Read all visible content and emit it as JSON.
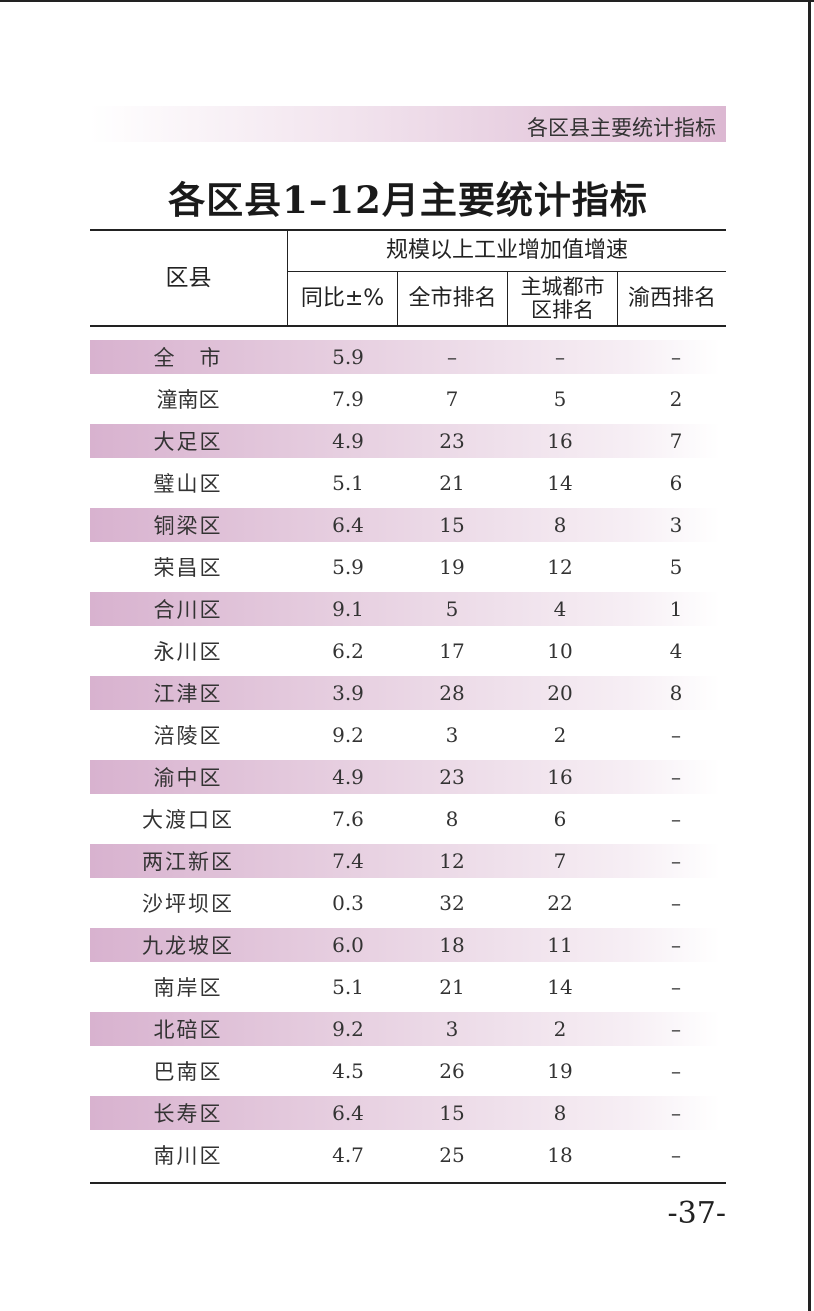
{
  "header_band": "各区县主要统计指标",
  "title": "各区县1–12月主要统计指标",
  "table": {
    "col_district": "区县",
    "group_header": "规模以上工业增加值增速",
    "col_yoy": "同比±%",
    "col_city_rank": "全市排名",
    "col_main_city_rank_line1": "主城都市",
    "col_main_city_rank_line2": "区排名",
    "col_west_rank": "渝西排名",
    "rows": [
      {
        "name": "全　市",
        "yoy": "5.9",
        "city_rank": "–",
        "main_rank": "–",
        "west_rank": "–"
      },
      {
        "name": "潼南区",
        "yoy": "7.9",
        "city_rank": "7",
        "main_rank": "5",
        "west_rank": "2"
      },
      {
        "name": "大足区",
        "yoy": "4.9",
        "city_rank": "23",
        "main_rank": "16",
        "west_rank": "7"
      },
      {
        "name": "璧山区",
        "yoy": "5.1",
        "city_rank": "21",
        "main_rank": "14",
        "west_rank": "6"
      },
      {
        "name": "铜梁区",
        "yoy": "6.4",
        "city_rank": "15",
        "main_rank": "8",
        "west_rank": "3"
      },
      {
        "name": "荣昌区",
        "yoy": "5.9",
        "city_rank": "19",
        "main_rank": "12",
        "west_rank": "5"
      },
      {
        "name": "合川区",
        "yoy": "9.1",
        "city_rank": "5",
        "main_rank": "4",
        "west_rank": "1"
      },
      {
        "name": "永川区",
        "yoy": "6.2",
        "city_rank": "17",
        "main_rank": "10",
        "west_rank": "4"
      },
      {
        "name": "江津区",
        "yoy": "3.9",
        "city_rank": "28",
        "main_rank": "20",
        "west_rank": "8"
      },
      {
        "name": "涪陵区",
        "yoy": "9.2",
        "city_rank": "3",
        "main_rank": "2",
        "west_rank": "–"
      },
      {
        "name": "渝中区",
        "yoy": "4.9",
        "city_rank": "23",
        "main_rank": "16",
        "west_rank": "–"
      },
      {
        "name": "大渡口区",
        "yoy": "7.6",
        "city_rank": "8",
        "main_rank": "6",
        "west_rank": "–"
      },
      {
        "name": "两江新区",
        "yoy": "7.4",
        "city_rank": "12",
        "main_rank": "7",
        "west_rank": "–"
      },
      {
        "name": "沙坪坝区",
        "yoy": "0.3",
        "city_rank": "32",
        "main_rank": "22",
        "west_rank": "–"
      },
      {
        "name": "九龙坡区",
        "yoy": "6.0",
        "city_rank": "18",
        "main_rank": "11",
        "west_rank": "–"
      },
      {
        "name": "南岸区",
        "yoy": "5.1",
        "city_rank": "21",
        "main_rank": "14",
        "west_rank": "–"
      },
      {
        "name": "北碚区",
        "yoy": "9.2",
        "city_rank": "3",
        "main_rank": "2",
        "west_rank": "–"
      },
      {
        "name": "巴南区",
        "yoy": "4.5",
        "city_rank": "26",
        "main_rank": "19",
        "west_rank": "–"
      },
      {
        "name": "长寿区",
        "yoy": "6.4",
        "city_rank": "15",
        "main_rank": "8",
        "west_rank": "–"
      },
      {
        "name": "南川区",
        "yoy": "4.7",
        "city_rank": "25",
        "main_rank": "18",
        "west_rank": "–"
      }
    ]
  },
  "page_number": "-37-"
}
